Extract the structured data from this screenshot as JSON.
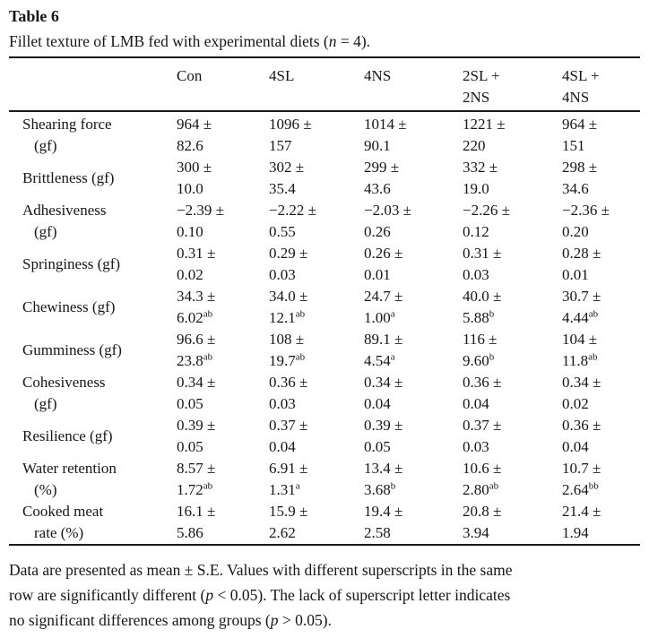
{
  "title": "Table 6",
  "caption": {
    "prefix": "Fillet texture of LMB fed with experimental diets (",
    "var": "n",
    "suffix": " = 4)."
  },
  "table": {
    "header": {
      "columns": [
        {
          "line1": "Con",
          "line2": ""
        },
        {
          "line1": "4SL",
          "line2": ""
        },
        {
          "line1": "4NS",
          "line2": ""
        },
        {
          "line1": "2SL +",
          "line2": "2NS"
        },
        {
          "line1": "4SL +",
          "line2": "4NS"
        }
      ]
    },
    "rows": [
      {
        "label": [
          "Shearing force",
          "(gf)"
        ],
        "cells": [
          {
            "mean": "964 ±",
            "se": "82.6",
            "sup": ""
          },
          {
            "mean": "1096 ±",
            "se": "157",
            "sup": ""
          },
          {
            "mean": "1014 ±",
            "se": "90.1",
            "sup": ""
          },
          {
            "mean": "1221 ±",
            "se": "220",
            "sup": ""
          },
          {
            "mean": "964 ±",
            "se": "151",
            "sup": ""
          }
        ]
      },
      {
        "label": [
          "Brittleness (gf)"
        ],
        "cells": [
          {
            "mean": "300 ±",
            "se": "10.0",
            "sup": ""
          },
          {
            "mean": "302 ±",
            "se": "35.4",
            "sup": ""
          },
          {
            "mean": "299 ±",
            "se": "43.6",
            "sup": ""
          },
          {
            "mean": "332 ±",
            "se": "19.0",
            "sup": ""
          },
          {
            "mean": "298 ±",
            "se": "34.6",
            "sup": ""
          }
        ]
      },
      {
        "label": [
          "Adhesiveness",
          "(gf)"
        ],
        "cells": [
          {
            "mean": "−2.39 ±",
            "se": "0.10",
            "sup": ""
          },
          {
            "mean": "−2.22 ±",
            "se": "0.55",
            "sup": ""
          },
          {
            "mean": "−2.03 ±",
            "se": "0.26",
            "sup": ""
          },
          {
            "mean": "−2.26 ±",
            "se": "0.12",
            "sup": ""
          },
          {
            "mean": "−2.36 ±",
            "se": "0.20",
            "sup": ""
          }
        ]
      },
      {
        "label": [
          "Springiness (gf)"
        ],
        "cells": [
          {
            "mean": "0.31 ±",
            "se": "0.02",
            "sup": ""
          },
          {
            "mean": "0.29 ±",
            "se": "0.03",
            "sup": ""
          },
          {
            "mean": "0.26 ±",
            "se": "0.01",
            "sup": ""
          },
          {
            "mean": "0.31 ±",
            "se": "0.03",
            "sup": ""
          },
          {
            "mean": "0.28 ±",
            "se": "0.01",
            "sup": ""
          }
        ]
      },
      {
        "label": [
          "Chewiness (gf)"
        ],
        "cells": [
          {
            "mean": "34.3 ±",
            "se": "6.02",
            "sup": "ab"
          },
          {
            "mean": "34.0 ±",
            "se": "12.1",
            "sup": "ab"
          },
          {
            "mean": "24.7 ±",
            "se": "1.00",
            "sup": "a"
          },
          {
            "mean": "40.0 ±",
            "se": "5.88",
            "sup": "b"
          },
          {
            "mean": "30.7 ±",
            "se": "4.44",
            "sup": "ab"
          }
        ]
      },
      {
        "label": [
          "Gumminess (gf)"
        ],
        "cells": [
          {
            "mean": "96.6 ±",
            "se": "23.8",
            "sup": "ab"
          },
          {
            "mean": "108 ±",
            "se": "19.7",
            "sup": "ab"
          },
          {
            "mean": "89.1 ±",
            "se": "4.54",
            "sup": "a"
          },
          {
            "mean": "116 ±",
            "se": "9.60",
            "sup": "b"
          },
          {
            "mean": "104 ±",
            "se": "11.8",
            "sup": "ab"
          }
        ]
      },
      {
        "label": [
          "Cohesiveness",
          "(gf)"
        ],
        "cells": [
          {
            "mean": "0.34 ±",
            "se": "0.05",
            "sup": ""
          },
          {
            "mean": "0.36 ±",
            "se": "0.03",
            "sup": ""
          },
          {
            "mean": "0.34 ±",
            "se": "0.04",
            "sup": ""
          },
          {
            "mean": "0.36 ±",
            "se": "0.04",
            "sup": ""
          },
          {
            "mean": "0.34 ±",
            "se": "0.02",
            "sup": ""
          }
        ]
      },
      {
        "label": [
          "Resilience (gf)"
        ],
        "cells": [
          {
            "mean": "0.39 ±",
            "se": "0.05",
            "sup": ""
          },
          {
            "mean": "0.37 ±",
            "se": "0.04",
            "sup": ""
          },
          {
            "mean": "0.39 ±",
            "se": "0.05",
            "sup": ""
          },
          {
            "mean": "0.37 ±",
            "se": "0.03",
            "sup": ""
          },
          {
            "mean": "0.36 ±",
            "se": "0.04",
            "sup": ""
          }
        ]
      },
      {
        "label": [
          "Water retention",
          "(%)"
        ],
        "cells": [
          {
            "mean": "8.57 ±",
            "se": "1.72",
            "sup": "ab"
          },
          {
            "mean": "6.91 ±",
            "se": "1.31",
            "sup": "a"
          },
          {
            "mean": "13.4 ±",
            "se": "3.68",
            "sup": "b"
          },
          {
            "mean": "10.6 ±",
            "se": "2.80",
            "sup": "ab"
          },
          {
            "mean": "10.7 ±",
            "se": "2.64",
            "sup": "bb"
          }
        ]
      },
      {
        "label": [
          "Cooked meat",
          "rate (%)"
        ],
        "cells": [
          {
            "mean": "16.1 ±",
            "se": "5.86",
            "sup": ""
          },
          {
            "mean": "15.9 ±",
            "se": "2.62",
            "sup": ""
          },
          {
            "mean": "19.4 ±",
            "se": "2.58",
            "sup": ""
          },
          {
            "mean": "20.8 ±",
            "se": "3.94",
            "sup": ""
          },
          {
            "mean": "21.4 ±",
            "se": "1.94",
            "sup": ""
          }
        ]
      }
    ]
  },
  "footnote": {
    "lines": [
      [
        {
          "t": "Data are presented as mean ± S.E. Values with different superscripts in the same",
          "i": false
        }
      ],
      [
        {
          "t": "row are significantly different (",
          "i": false
        },
        {
          "t": "p",
          "i": true
        },
        {
          "t": " < 0.05). The lack of superscript letter indicates",
          "i": false
        }
      ],
      [
        {
          "t": "no significant differences among groups (",
          "i": false
        },
        {
          "t": "p",
          "i": true
        },
        {
          "t": " > 0.05).",
          "i": false
        }
      ]
    ]
  }
}
